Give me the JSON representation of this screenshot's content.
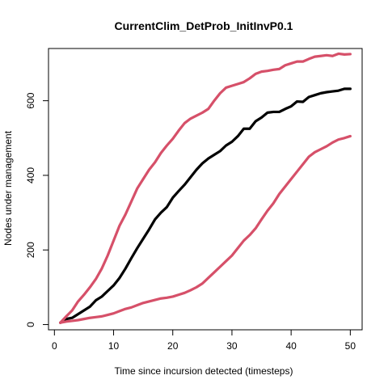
{
  "chart_data": {
    "type": "line",
    "title": "CurrentClim_DetProb_InitInvP0.1",
    "xlabel": "Time since incursion detected (timesteps)",
    "ylabel": "Nodes under management",
    "xlim": [
      -1,
      52
    ],
    "ylim": [
      -14,
      740
    ],
    "x_ticks": [
      0,
      10,
      20,
      30,
      40,
      50
    ],
    "y_ticks": [
      0,
      200,
      400,
      600
    ],
    "grid": false,
    "legend": "none",
    "x": [
      1,
      2,
      3,
      4,
      5,
      6,
      7,
      8,
      9,
      10,
      11,
      12,
      13,
      14,
      15,
      16,
      17,
      18,
      19,
      20,
      21,
      22,
      23,
      24,
      25,
      26,
      27,
      28,
      29,
      30,
      31,
      32,
      33,
      34,
      35,
      36,
      37,
      38,
      39,
      40,
      41,
      42,
      43,
      44,
      45,
      46,
      47,
      48,
      49,
      50
    ],
    "series": [
      {
        "color": "#000000",
        "values": [
          5,
          15,
          18,
          28,
          38,
          48,
          65,
          75,
          90,
          105,
          125,
          150,
          178,
          205,
          230,
          255,
          282,
          300,
          315,
          340,
          358,
          375,
          395,
          415,
          432,
          445,
          455,
          465,
          480,
          490,
          505,
          525,
          525,
          545,
          555,
          568,
          570,
          570,
          578,
          585,
          598,
          597,
          610,
          615,
          620,
          623,
          625,
          627,
          632,
          632
        ]
      },
      {
        "color": "#D65069",
        "values": [
          5,
          22,
          38,
          62,
          80,
          100,
          122,
          150,
          185,
          225,
          265,
          295,
          330,
          365,
          390,
          415,
          435,
          460,
          480,
          498,
          520,
          540,
          552,
          560,
          568,
          578,
          600,
          620,
          635,
          640,
          645,
          650,
          660,
          672,
          678,
          680,
          683,
          685,
          695,
          700,
          705,
          705,
          712,
          718,
          720,
          722,
          720,
          726,
          724,
          725
        ]
      },
      {
        "color": "#D65069",
        "values": [
          5,
          8,
          10,
          12,
          15,
          18,
          20,
          22,
          26,
          30,
          36,
          42,
          46,
          52,
          58,
          62,
          66,
          70,
          72,
          75,
          80,
          85,
          92,
          100,
          110,
          125,
          140,
          155,
          170,
          185,
          205,
          225,
          240,
          258,
          282,
          305,
          325,
          350,
          370,
          390,
          410,
          430,
          450,
          462,
          470,
          478,
          488,
          496,
          500,
          505
        ]
      }
    ]
  }
}
